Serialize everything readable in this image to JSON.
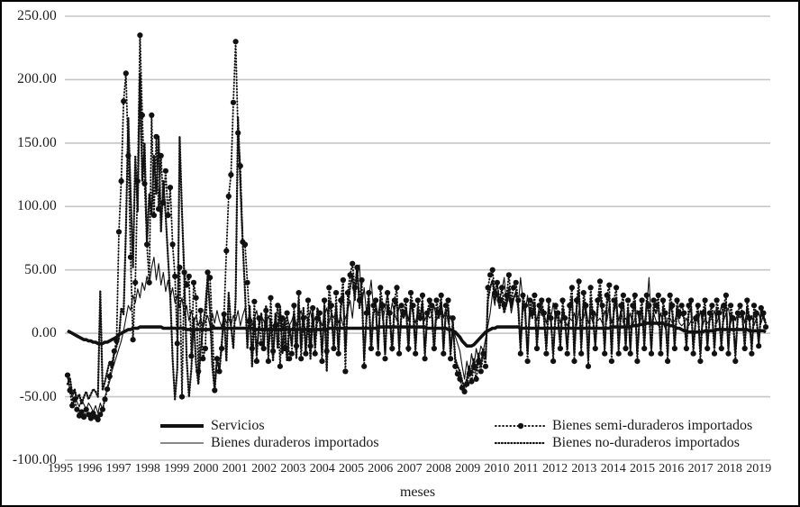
{
  "figure": {
    "background": "#ffffff",
    "frame_color": "#000000",
    "grid_color": "#c6c6c6",
    "line_color": "#111111"
  },
  "chart_data": {
    "type": "line",
    "title": "",
    "xlabel": "meses",
    "ylabel": "",
    "ylim": [
      -100,
      250
    ],
    "grid": true,
    "legend_position": "bottom-inside-two-columns",
    "x_unit": "monthly, Jan 1995 - Dec 2019",
    "y_tick_values": [
      250,
      200,
      150,
      100,
      50,
      0,
      -50,
      -100
    ],
    "y_tick_labels": [
      "250.00",
      "200.00",
      "150.00",
      "100.00",
      "50.00",
      "0.00",
      "-50.00",
      "-100.00"
    ],
    "year_labels": [
      "1995",
      "1996",
      "1997",
      "1998",
      "1999",
      "2000",
      "2001",
      "2002",
      "2003",
      "2004",
      "2005",
      "2006",
      "2007",
      "2008",
      "2009",
      "2010",
      "2011",
      "2012",
      "2013",
      "2014",
      "2015",
      "2016",
      "2017",
      "2018",
      "2019"
    ],
    "series": [
      {
        "name": "Servicios",
        "style": "thick-solid",
        "values": [
          2,
          1,
          0,
          -1,
          -2,
          -3,
          -4,
          -5,
          -5,
          -6,
          -6,
          -7,
          -7,
          -8,
          -8,
          -8,
          -7,
          -7,
          -6,
          -5,
          -4,
          -3,
          -1,
          0,
          1,
          2,
          3,
          3,
          4,
          4,
          4,
          5,
          5,
          5,
          5,
          5,
          5,
          5,
          5,
          5,
          5,
          4,
          4,
          4,
          4,
          4,
          4,
          4,
          4,
          4,
          4,
          3,
          3,
          3,
          3,
          3,
          3,
          3,
          3,
          3,
          3,
          3,
          4,
          4,
          4,
          4,
          4,
          4,
          4,
          4,
          4,
          4,
          4,
          4,
          4,
          4,
          4,
          4,
          4,
          4,
          3,
          3,
          3,
          3,
          3,
          3,
          3,
          3,
          3,
          3,
          3,
          3,
          3,
          3,
          3,
          3,
          3,
          3,
          3,
          3,
          3,
          3,
          3,
          3,
          3,
          3,
          3,
          3,
          3,
          3,
          3,
          3,
          4,
          4,
          4,
          4,
          4,
          4,
          4,
          4,
          4,
          4,
          4,
          4,
          4,
          4,
          4,
          4,
          4,
          4,
          4,
          4,
          4,
          5,
          5,
          5,
          5,
          5,
          5,
          5,
          5,
          5,
          5,
          5,
          5,
          5,
          5,
          5,
          5,
          5,
          5,
          5,
          5,
          5,
          4,
          4,
          4,
          4,
          4,
          4,
          4,
          4,
          4,
          3,
          3,
          2,
          1,
          -1,
          -3,
          -6,
          -8,
          -10,
          -10,
          -10,
          -9,
          -7,
          -5,
          -3,
          -1,
          1,
          2,
          3,
          4,
          4,
          5,
          5,
          5,
          5,
          5,
          5,
          5,
          5,
          5,
          5,
          4,
          4,
          4,
          4,
          4,
          4,
          4,
          4,
          4,
          4,
          4,
          4,
          4,
          4,
          4,
          4,
          4,
          4,
          4,
          4,
          4,
          4,
          4,
          4,
          4,
          4,
          4,
          4,
          4,
          4,
          4,
          4,
          4,
          4,
          4,
          4,
          4,
          4,
          4,
          5,
          5,
          5,
          5,
          5,
          5,
          5,
          5,
          5,
          6,
          6,
          6,
          7,
          7,
          7,
          8,
          8,
          8,
          8,
          8,
          8,
          8,
          8,
          7,
          7,
          6,
          6,
          5,
          4,
          4,
          3,
          2,
          2,
          1,
          1,
          1,
          1,
          1,
          1,
          1,
          2,
          2,
          2,
          2,
          2,
          3,
          3,
          3,
          3,
          3,
          3,
          3,
          3,
          3,
          3,
          3,
          3,
          3,
          3,
          2,
          2,
          2,
          2,
          2,
          2,
          2,
          1
        ]
      },
      {
        "name": "Bienes duraderos importados",
        "style": "thin-solid",
        "values": [
          -35,
          -44,
          -50,
          -46,
          -54,
          -58,
          -52,
          -56,
          -60,
          -55,
          -58,
          -62,
          -57,
          -63,
          -55,
          -60,
          -50,
          -44,
          -38,
          -30,
          -24,
          -18,
          -12,
          -6,
          2,
          12,
          22,
          18,
          30,
          24,
          35,
          28,
          40,
          34,
          45,
          38,
          52,
          60,
          42,
          55,
          38,
          48,
          33,
          42,
          28,
          36,
          24,
          30,
          20,
          28,
          14,
          22,
          10,
          18,
          8,
          14,
          6,
          12,
          4,
          10,
          14,
          6,
          16,
          8,
          18,
          10,
          5,
          15,
          8,
          12,
          6,
          14,
          10,
          18,
          6,
          14,
          20,
          8,
          16,
          6,
          12,
          18,
          8,
          14,
          10,
          4,
          14,
          8,
          2,
          12,
          6,
          16,
          4,
          10,
          14,
          6,
          10,
          16,
          6,
          12,
          18,
          8,
          14,
          10,
          18,
          6,
          12,
          8,
          12,
          6,
          14,
          20,
          8,
          16,
          12,
          18,
          8,
          14,
          6,
          12,
          18,
          26,
          12,
          32,
          44,
          54,
          22,
          36,
          16,
          28,
          42,
          20,
          24,
          14,
          28,
          10,
          20,
          32,
          12,
          24,
          16,
          10,
          22,
          14,
          12,
          20,
          10,
          24,
          14,
          8,
          18,
          12,
          22,
          10,
          16,
          12,
          14,
          22,
          10,
          16,
          26,
          12,
          20,
          8,
          14,
          6,
          -2,
          -8,
          -14,
          -26,
          -36,
          -22,
          -32,
          -16,
          -26,
          -12,
          -20,
          -10,
          -14,
          -4,
          6,
          16,
          32,
          22,
          40,
          26,
          34,
          44,
          22,
          30,
          16,
          26,
          34,
          22,
          44,
          26,
          16,
          30,
          12,
          26,
          18,
          10,
          22,
          14,
          16,
          8,
          20,
          12,
          24,
          10,
          18,
          8,
          16,
          10,
          6,
          12,
          10,
          16,
          6,
          18,
          10,
          12,
          20,
          8,
          14,
          8,
          16,
          10,
          12,
          8,
          18,
          10,
          22,
          8,
          16,
          24,
          10,
          18,
          8,
          12,
          8,
          16,
          6,
          12,
          18,
          8,
          14,
          8,
          20,
          44,
          6,
          16,
          10,
          6,
          16,
          8,
          4,
          12,
          12,
          8,
          10,
          16,
          8,
          6,
          8,
          12,
          6,
          10,
          8,
          14,
          8,
          18,
          6,
          12,
          8,
          10,
          12,
          18,
          8,
          14,
          22,
          10,
          16,
          20,
          8,
          14,
          10,
          16,
          12,
          18,
          8,
          20,
          10,
          14,
          6,
          12,
          16,
          8,
          14,
          10
        ]
      },
      {
        "name": "Bienes semi-duraderos importados",
        "style": "dotted-markers",
        "values": [
          -33,
          -45,
          -57,
          -52,
          -60,
          -65,
          -62,
          -66,
          -60,
          -64,
          -67,
          -63,
          -66,
          -68,
          -64,
          -60,
          -52,
          -44,
          -34,
          -24,
          -14,
          -6,
          80,
          120,
          183,
          205,
          140,
          60,
          -5,
          40,
          120,
          235,
          172,
          118,
          70,
          40,
          172,
          93,
          155,
          98,
          140,
          103,
          128,
          93,
          115,
          70,
          45,
          -8,
          52,
          -50,
          48,
          38,
          45,
          -18,
          40,
          28,
          -30,
          18,
          -20,
          -12,
          48,
          44,
          5,
          -45,
          -20,
          -30,
          -12,
          15,
          65,
          108,
          125,
          182,
          230,
          158,
          132,
          72,
          70,
          40,
          10,
          -12,
          25,
          -22,
          12,
          -8,
          -12,
          18,
          -22,
          28,
          -14,
          6,
          22,
          -26,
          12,
          -12,
          16,
          -20,
          -16,
          22,
          -10,
          32,
          -20,
          12,
          -16,
          26,
          -10,
          20,
          -16,
          12,
          16,
          -22,
          26,
          -14,
          36,
          22,
          -12,
          32,
          -16,
          26,
          42,
          -30,
          32,
          46,
          55,
          36,
          52,
          26,
          42,
          -26,
          16,
          32,
          -12,
          22,
          26,
          -16,
          36,
          22,
          -20,
          32,
          16,
          -12,
          26,
          36,
          -16,
          22,
          16,
          26,
          -12,
          32,
          22,
          -16,
          26,
          12,
          30,
          -20,
          16,
          26,
          22,
          -12,
          26,
          16,
          30,
          -16,
          22,
          26,
          -20,
          12,
          -26,
          -32,
          -36,
          -43,
          -46,
          -40,
          -32,
          -38,
          -26,
          -36,
          -22,
          -30,
          -16,
          -26,
          36,
          46,
          50,
          32,
          40,
          26,
          36,
          22,
          30,
          46,
          26,
          36,
          40,
          26,
          -16,
          30,
          22,
          -22,
          26,
          16,
          30,
          -12,
          22,
          26,
          16,
          -16,
          26,
          12,
          -22,
          22,
          16,
          -12,
          26,
          12,
          -16,
          22,
          36,
          -22,
          26,
          41,
          -16,
          32,
          22,
          -26,
          36,
          16,
          -12,
          26,
          41,
          22,
          -16,
          30,
          38,
          -22,
          26,
          36,
          -16,
          22,
          30,
          -12,
          26,
          -16,
          22,
          30,
          -22,
          16,
          26,
          -12,
          30,
          22,
          -16,
          26,
          22,
          30,
          -16,
          26,
          16,
          -22,
          30,
          22,
          -12,
          26,
          16,
          22,
          16,
          -12,
          22,
          26,
          -16,
          12,
          22,
          -22,
          16,
          26,
          -12,
          16,
          22,
          -16,
          26,
          16,
          -12,
          22,
          30,
          -16,
          22,
          12,
          -22,
          16,
          22,
          16,
          -12,
          26,
          12,
          -16,
          22,
          16,
          -10,
          20,
          16,
          5
        ]
      },
      {
        "name": "Bienes no-duraderos importados",
        "style": "dotted",
        "values": [
          -40,
          -35,
          -48,
          -44,
          -52,
          -48,
          -56,
          -50,
          -46,
          -52,
          -48,
          -44,
          -46,
          -50,
          33,
          -45,
          -38,
          -30,
          -22,
          -28,
          -16,
          -10,
          -4,
          20,
          15,
          82,
          170,
          110,
          52,
          140,
          96,
          205,
          120,
          150,
          70,
          110,
          93,
          140,
          110,
          155,
          80,
          120,
          93,
          60,
          30,
          -20,
          -52,
          -28,
          155,
          96,
          45,
          -20,
          -50,
          -28,
          12,
          -24,
          -40,
          -14,
          6,
          20,
          45,
          18,
          -26,
          -45,
          -18,
          -30,
          -8,
          16,
          -22,
          32,
          6,
          -12,
          28,
          170,
          118,
          72,
          32,
          -12,
          22,
          -26,
          12,
          -16,
          6,
          16,
          -12,
          22,
          -16,
          12,
          -22,
          16,
          -12,
          22,
          -16,
          12,
          -22,
          6,
          -10,
          16,
          -20,
          26,
          -12,
          20,
          -16,
          12,
          -20,
          16,
          -10,
          20,
          12,
          -16,
          22,
          -30,
          26,
          16,
          -12,
          22,
          -16,
          20,
          32,
          -14,
          22,
          36,
          46,
          26,
          53,
          20,
          32,
          -20,
          12,
          26,
          -14,
          16,
          20,
          -12,
          26,
          16,
          -16,
          22,
          12,
          -14,
          20,
          26,
          -12,
          16,
          12,
          20,
          -14,
          26,
          16,
          -12,
          20,
          10,
          24,
          -16,
          12,
          20,
          16,
          -14,
          20,
          12,
          24,
          -12,
          16,
          20,
          -16,
          8,
          -20,
          -26,
          -30,
          -38,
          -42,
          -36,
          -26,
          -32,
          -20,
          -30,
          -16,
          -26,
          -12,
          -20,
          26,
          36,
          42,
          26,
          32,
          20,
          28,
          16,
          24,
          36,
          20,
          28,
          32,
          20,
          -12,
          24,
          16,
          -16,
          20,
          12,
          24,
          -10,
          16,
          20,
          12,
          -12,
          20,
          10,
          -16,
          16,
          12,
          -10,
          20,
          10,
          -12,
          16,
          28,
          -16,
          20,
          33,
          -12,
          26,
          16,
          -20,
          28,
          12,
          -10,
          20,
          33,
          16,
          -12,
          24,
          30,
          -16,
          20,
          28,
          -12,
          16,
          24,
          -10,
          20,
          -12,
          16,
          24,
          -16,
          12,
          20,
          -10,
          24,
          16,
          -12,
          20,
          16,
          24,
          -12,
          20,
          12,
          -16,
          24,
          16,
          -10,
          20,
          12,
          16,
          12,
          -10,
          16,
          20,
          -12,
          10,
          16,
          -16,
          12,
          20,
          -10,
          12,
          16,
          -12,
          20,
          12,
          -10,
          16,
          24,
          -12,
          16,
          10,
          -16,
          12,
          16,
          12,
          -10,
          20,
          10,
          -12,
          16,
          12,
          -8,
          16,
          12,
          8
        ]
      }
    ]
  }
}
